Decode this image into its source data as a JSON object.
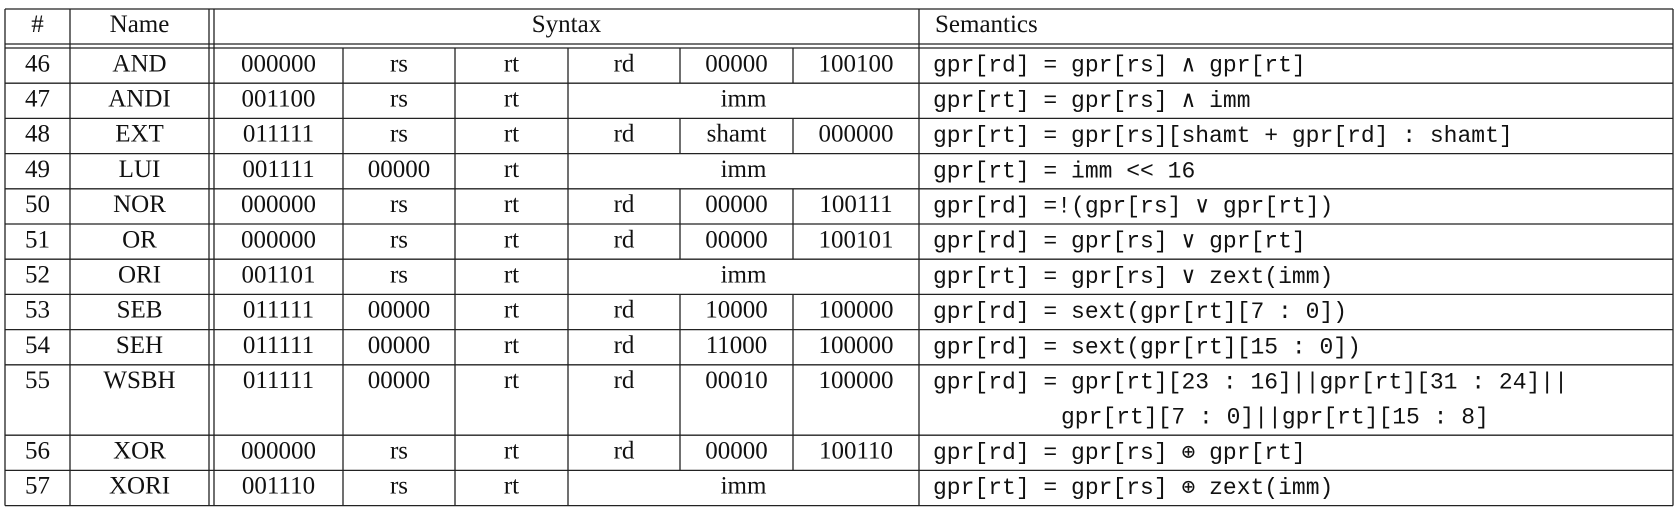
{
  "table": {
    "header": [
      "#",
      "Name",
      "Syntax",
      "Semantics"
    ],
    "rows": [
      {
        "num": "46",
        "name": "AND",
        "fields": [
          "000000",
          "rs",
          "rt",
          "rd",
          "00000",
          "100100"
        ],
        "semantics": [
          "gpr[rd] = gpr[rs] ∧ gpr[rt]"
        ]
      },
      {
        "num": "47",
        "name": "ANDI",
        "fields": [
          "001100",
          "rs",
          "rt",
          "imm"
        ],
        "semantics": [
          "gpr[rt] = gpr[rs] ∧ imm"
        ]
      },
      {
        "num": "48",
        "name": "EXT",
        "fields": [
          "011111",
          "rs",
          "rt",
          "rd",
          "shamt",
          "000000"
        ],
        "semantics": [
          "gpr[rt] = gpr[rs][shamt + gpr[rd] : shamt]"
        ]
      },
      {
        "num": "49",
        "name": "LUI",
        "fields": [
          "001111",
          "00000",
          "rt",
          "imm"
        ],
        "semantics": [
          "gpr[rt] = imm << 16"
        ]
      },
      {
        "num": "50",
        "name": "NOR",
        "fields": [
          "000000",
          "rs",
          "rt",
          "rd",
          "00000",
          "100111"
        ],
        "semantics": [
          "gpr[rd] =!(gpr[rs] ∨ gpr[rt])"
        ]
      },
      {
        "num": "51",
        "name": "OR",
        "fields": [
          "000000",
          "rs",
          "rt",
          "rd",
          "00000",
          "100101"
        ],
        "semantics": [
          "gpr[rd] = gpr[rs] ∨ gpr[rt]"
        ]
      },
      {
        "num": "52",
        "name": "ORI",
        "fields": [
          "001101",
          "rs",
          "rt",
          "imm"
        ],
        "semantics": [
          "gpr[rt] = gpr[rs] ∨ zext(imm)"
        ]
      },
      {
        "num": "53",
        "name": "SEB",
        "fields": [
          "011111",
          "00000",
          "rt",
          "rd",
          "10000",
          "100000"
        ],
        "semantics": [
          "gpr[rd] = sext(gpr[rt][7 : 0])"
        ]
      },
      {
        "num": "54",
        "name": "SEH",
        "fields": [
          "011111",
          "00000",
          "rt",
          "rd",
          "11000",
          "100000"
        ],
        "semantics": [
          "gpr[rd] = sext(gpr[rt][15 : 0])"
        ]
      },
      {
        "num": "55",
        "name": "WSBH",
        "fields": [
          "011111",
          "00000",
          "rt",
          "rd",
          "00010",
          "100000"
        ],
        "semantics": [
          "gpr[rd] = gpr[rt][23 : 16]||gpr[rt][31 : 24]||",
          "gpr[rt][7 : 0]||gpr[rt][15 : 8]"
        ]
      },
      {
        "num": "56",
        "name": "XOR",
        "fields": [
          "000000",
          "rs",
          "rt",
          "rd",
          "00000",
          "100110"
        ],
        "semantics": [
          "gpr[rd] = gpr[rs] ⊕ gpr[rt]"
        ]
      },
      {
        "num": "57",
        "name": "XORI",
        "fields": [
          "001110",
          "rs",
          "rt",
          "imm"
        ],
        "semantics": [
          "gpr[rt] = gpr[rs] ⊕ zext(imm)"
        ]
      }
    ]
  }
}
